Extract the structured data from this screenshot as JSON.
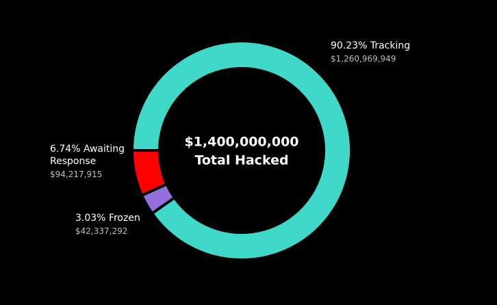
{
  "chart_data": {
    "type": "donut",
    "center_value": "$1,400,000,000",
    "center_caption": "Total Hacked",
    "categories": [
      "Awaiting Response",
      "Frozen",
      "Tracking"
    ],
    "values": [
      6.74,
      3.03,
      90.23
    ],
    "value_labels": [
      "6.74%",
      "3.03%",
      "90.23%"
    ],
    "amount_labels": [
      "$94,217,915",
      "$42,337,292",
      "$1,260,969,949"
    ],
    "colors": [
      "#ff0000",
      "#9370db",
      "#40d9c9"
    ]
  }
}
